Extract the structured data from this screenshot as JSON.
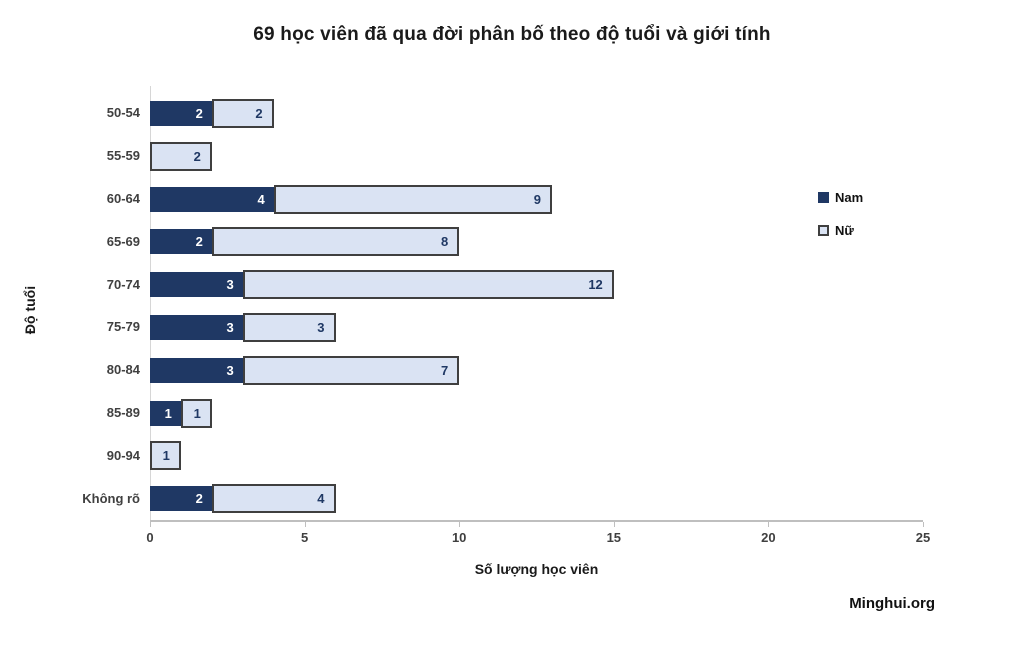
{
  "title": "69 học viên đã qua đời phân bố theo độ tuổi và giới tính",
  "watermark": "Minghui.org",
  "chart_data": {
    "type": "bar",
    "orientation": "horizontal",
    "stacked": true,
    "title": "69 học viên đã qua đời phân bố theo độ tuổi và giới tính",
    "xlabel": "Số lượng học viên",
    "ylabel": "Độ tuổi",
    "categories": [
      "50-54",
      "55-59",
      "60-64",
      "65-69",
      "70-74",
      "75-79",
      "80-84",
      "85-89",
      "90-94",
      "Không rõ"
    ],
    "series": [
      {
        "name": "Nam",
        "values": [
          2,
          0,
          4,
          2,
          3,
          3,
          3,
          1,
          0,
          2
        ],
        "color": "#1F3864",
        "border_color": null,
        "label_color": "#FFFFFF"
      },
      {
        "name": "Nữ",
        "values": [
          2,
          2,
          9,
          8,
          12,
          3,
          7,
          1,
          1,
          4
        ],
        "color": "#DAE3F3",
        "border_color": "#3F3F3F",
        "label_color": "#1F3864"
      }
    ],
    "xlim": [
      0,
      25
    ],
    "xticks": [
      0,
      5,
      10,
      15,
      20,
      25
    ],
    "value_labels": "inside-end",
    "legend_position": "right",
    "grid": false,
    "total": 69
  }
}
